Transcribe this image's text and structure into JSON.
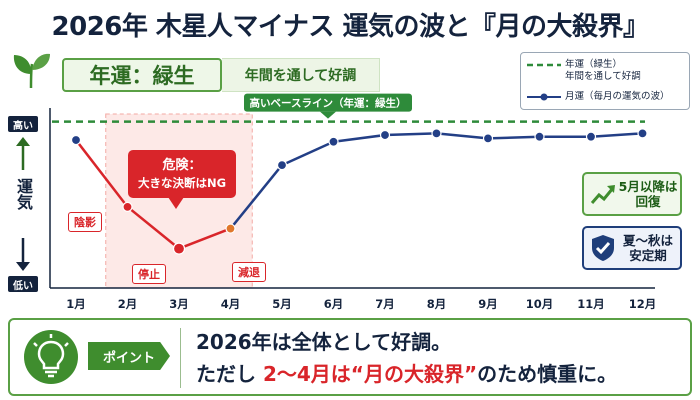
{
  "title": "2026年 木星人マイナス 運気の波と『月の大殺界』",
  "annual_badge": {
    "label": "年運：緑生",
    "description": "年間を通して好調"
  },
  "legend": {
    "annual": "年運（緑生）\n年間を通して好調",
    "monthly": "月運（毎月の運気の波）"
  },
  "yaxis": {
    "high": "高い",
    "low": "低い",
    "label": "運気"
  },
  "baseline_label": "高いベースライン（年運：緑生）",
  "danger_callout": {
    "line1": "危険：",
    "line2": "大きな決断はNG"
  },
  "point_labels": {
    "feb": "陰影",
    "mar": "停止",
    "apr": "減退"
  },
  "side_cards": {
    "recover": "5月以降は\n回復",
    "stable": "夏〜秋は\n安定期"
  },
  "bottom": {
    "tag": "ポイント",
    "line1": "2026年は全体として好調。",
    "line2_prefix": "ただし",
    "line2_highlight": "2〜4月は“月の大殺界”",
    "line2_suffix": "のため慎重に。"
  },
  "colors": {
    "navy": "#14233d",
    "green": "#3f8d2e",
    "baseline_green": "#2e8b3a",
    "red": "#d9252a",
    "orange": "#e0772b",
    "line_blue": "#233f86"
  },
  "icons": [
    "leaf-icon",
    "up-arrow-icon",
    "down-arrow-icon",
    "trend-up-icon",
    "shield-check-icon",
    "lightbulb-icon"
  ],
  "chart_data": {
    "type": "line",
    "categories": [
      "1月",
      "2月",
      "3月",
      "4月",
      "5月",
      "6月",
      "7月",
      "8月",
      "9月",
      "10月",
      "11月",
      "12月"
    ],
    "series": [
      {
        "name": "月運（毎月の運気の波）",
        "values": [
          85,
          45,
          20,
          32,
          70,
          84,
          88,
          89,
          86,
          87,
          87,
          89
        ]
      }
    ],
    "baseline": {
      "name": "年運（緑生）",
      "value": 96
    },
    "highlight_range": [
      "2月",
      "4月"
    ],
    "ylim": [
      0,
      100
    ],
    "ylabel": "運気",
    "grid": false,
    "legend_position": "top-right"
  }
}
